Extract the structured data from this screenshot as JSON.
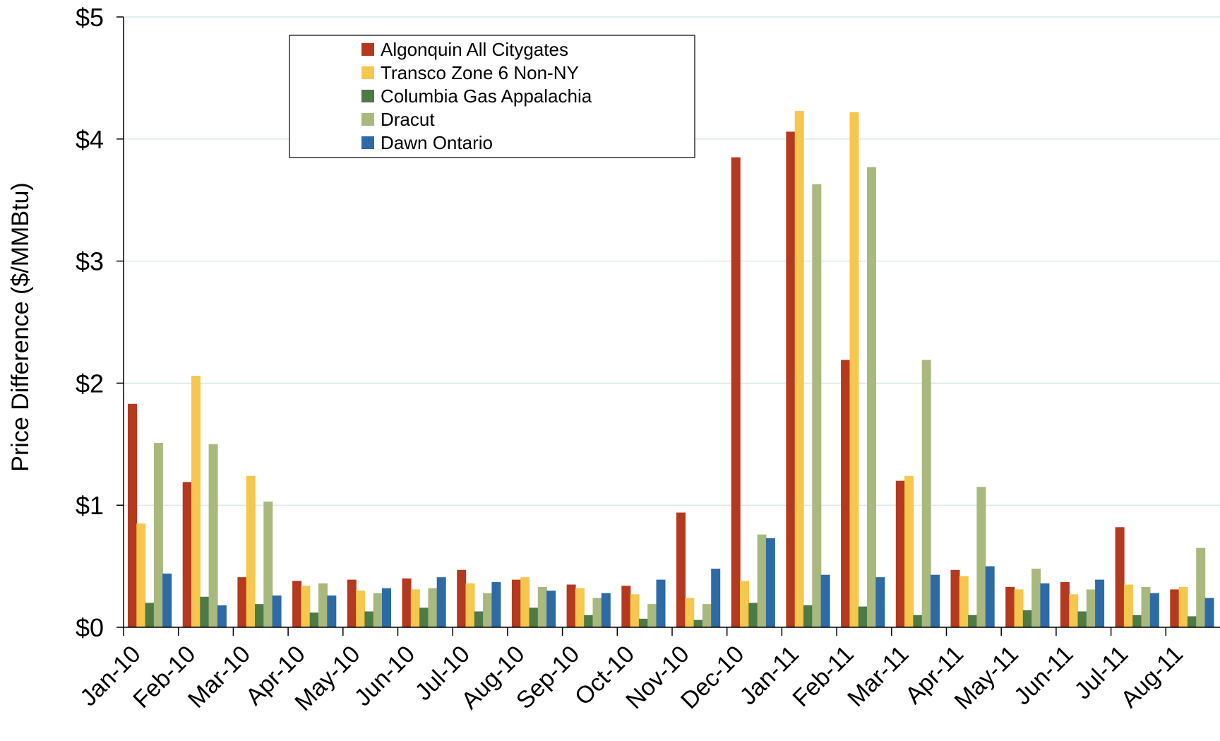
{
  "chart_data": {
    "type": "bar",
    "title": "",
    "xlabel": "",
    "ylabel": "Price Difference  ($/MMBtu)",
    "ylim": [
      0,
      5
    ],
    "yticks": [
      0,
      1,
      2,
      3,
      4,
      5
    ],
    "ytick_labels": [
      "$0",
      "$1",
      "$2",
      "$3",
      "$4",
      "$5"
    ],
    "grid": "horizontal",
    "legend_position": "top-left",
    "categories": [
      "Jan-10",
      "Feb-10",
      "Mar-10",
      "Apr-10",
      "May-10",
      "Jun-10",
      "Jul-10",
      "Aug-10",
      "Sep-10",
      "Oct-10",
      "Nov-10",
      "Dec-10",
      "Jan-11",
      "Feb-11",
      "Mar-11",
      "Apr-11",
      "May-11",
      "Jun-11",
      "Jul-11",
      "Aug-11"
    ],
    "series": [
      {
        "name": "Algonquin All Citygates",
        "color": "#b5391f",
        "values": [
          1.83,
          1.19,
          0.41,
          0.38,
          0.39,
          0.4,
          0.47,
          0.39,
          0.35,
          0.34,
          0.94,
          3.85,
          4.06,
          2.19,
          1.2,
          0.47,
          0.33,
          0.37,
          0.82,
          0.31
        ]
      },
      {
        "name": "Transco Zone 6 Non-NY",
        "color": "#f5c74e",
        "values": [
          0.85,
          2.06,
          1.24,
          0.34,
          0.3,
          0.31,
          0.36,
          0.41,
          0.32,
          0.27,
          0.24,
          0.38,
          4.23,
          4.22,
          1.24,
          0.42,
          0.31,
          0.27,
          0.35,
          0.33
        ]
      },
      {
        "name": "Columbia Gas Appalachia",
        "color": "#4d7a45",
        "values": [
          0.2,
          0.25,
          0.19,
          0.12,
          0.13,
          0.16,
          0.13,
          0.16,
          0.1,
          0.07,
          0.06,
          0.2,
          0.18,
          0.17,
          0.1,
          0.1,
          0.14,
          0.13,
          0.1,
          0.09
        ]
      },
      {
        "name": "Dracut",
        "color": "#a9b97e",
        "values": [
          1.51,
          1.5,
          1.03,
          0.36,
          0.28,
          0.32,
          0.28,
          0.33,
          0.24,
          0.19,
          0.19,
          0.76,
          3.63,
          3.77,
          2.19,
          1.15,
          0.48,
          0.31,
          0.33,
          0.65
        ]
      },
      {
        "name": "Dawn Ontario",
        "color": "#2e6aa6",
        "values": [
          0.44,
          0.18,
          0.26,
          0.26,
          0.32,
          0.41,
          0.37,
          0.3,
          0.28,
          0.39,
          0.48,
          0.73,
          0.43,
          0.41,
          0.43,
          0.5,
          0.36,
          0.39,
          0.28,
          0.24
        ]
      }
    ]
  }
}
